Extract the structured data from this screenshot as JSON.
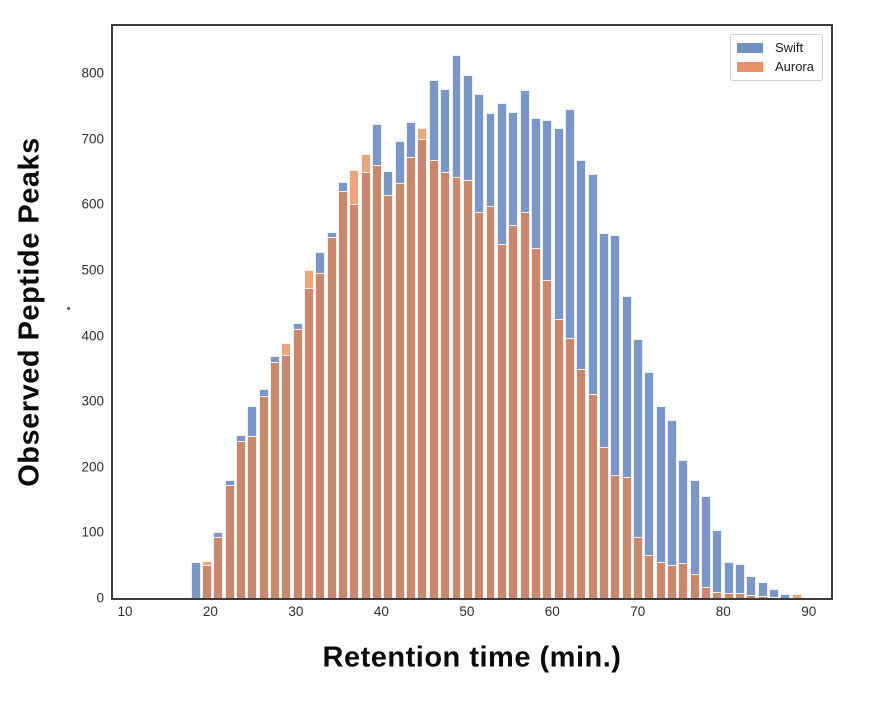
{
  "chart_data": {
    "type": "bar",
    "subtype": "overlaid-histogram",
    "title": "",
    "xlabel": "Retention time (min.)",
    "ylabel": "Observed Peptide Peaks",
    "x_ticks": [
      10,
      20,
      30,
      40,
      50,
      60,
      70,
      80,
      90
    ],
    "y_ticks": [
      0,
      100,
      200,
      300,
      400,
      500,
      600,
      700,
      800
    ],
    "x_range": [
      8.6,
      92.6
    ],
    "y_range": [
      0,
      872
    ],
    "grid": false,
    "legend_position": "upper right",
    "bin_start": 17.6,
    "bin_width": 1.327,
    "bin_count": 54,
    "series": [
      {
        "name": "Swift",
        "values": [
          55,
          50,
          100,
          180,
          248,
          292,
          318,
          369,
          370,
          420,
          473,
          527,
          558,
          634,
          600,
          650,
          722,
          651,
          696,
          725,
          700,
          790,
          776,
          828,
          798,
          769,
          740,
          754,
          741,
          775,
          731,
          728,
          716,
          745,
          667,
          646,
          557,
          553,
          461,
          395,
          345,
          292,
          272,
          210,
          180,
          155,
          103,
          55,
          52,
          33,
          25,
          14,
          6,
          0
        ]
      },
      {
        "name": "Aurora",
        "values": [
          0,
          57,
          93,
          172,
          240,
          247,
          308,
          360,
          389,
          410,
          500,
          495,
          550,
          620,
          652,
          677,
          660,
          615,
          632,
          672,
          716,
          668,
          650,
          642,
          637,
          588,
          597,
          540,
          568,
          589,
          533,
          485,
          426,
          397,
          349,
          311,
          230,
          188,
          185,
          93,
          65,
          55,
          50,
          53,
          36,
          17,
          9,
          8,
          8,
          5,
          3,
          2,
          0,
          6
        ]
      }
    ],
    "legend": [
      {
        "label": "Swift",
        "color": "#6F90C3"
      },
      {
        "label": "Aurora",
        "color": "#E8936A"
      }
    ],
    "colors": {
      "swift_fill": "#7B97C7",
      "aurora_over_white": "#EAA77C",
      "aurora_over_swift": "#C8886D",
      "bar_edge": "rgba(255,255,255,0.85)",
      "axis_border": "#3a3a3a",
      "tick_text": "#2e2e2e",
      "title_text": "#0b0b0b"
    }
  }
}
